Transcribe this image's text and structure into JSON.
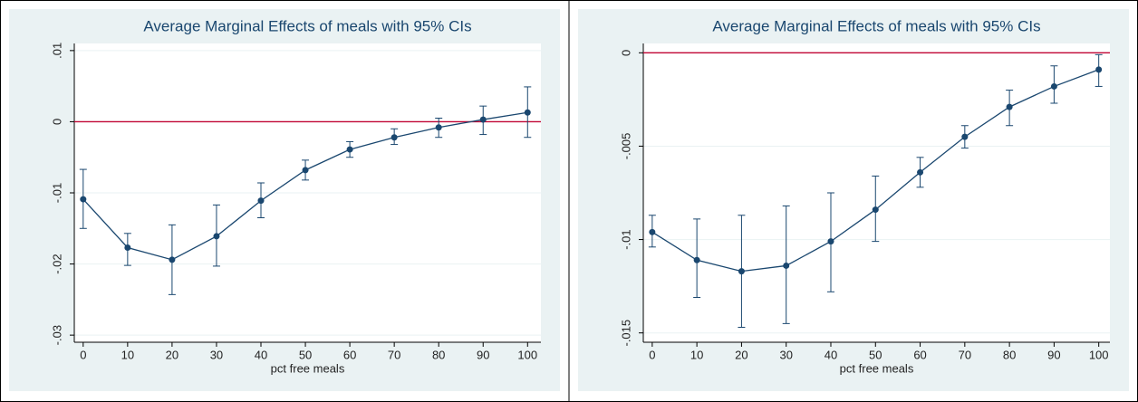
{
  "chart_data": [
    {
      "type": "line",
      "title": "Average Marginal Effects of meals with 95% CIs",
      "x_label": "pct free meals",
      "x": [
        0,
        10,
        20,
        30,
        40,
        50,
        60,
        70,
        80,
        90,
        100
      ],
      "series": [
        {
          "color": "#1a476f",
          "values": [
            -0.0109,
            -0.0177,
            -0.0194,
            -0.0161,
            -0.0111,
            -0.0068,
            -0.0039,
            -0.0022,
            -0.0008,
            0.0003,
            0.0013
          ],
          "ci_upper": [
            -0.0067,
            -0.0157,
            -0.0145,
            -0.0117,
            -0.0086,
            -0.0054,
            -0.0028,
            -0.001,
            0.0005,
            0.0022,
            0.0049
          ],
          "ci_lower": [
            -0.015,
            -0.0202,
            -0.0243,
            -0.0203,
            -0.0135,
            -0.0082,
            -0.005,
            -0.0032,
            -0.0022,
            -0.0018,
            -0.0022
          ]
        }
      ],
      "reference_line": {
        "value": 0,
        "color": "#c10534"
      },
      "xlim": [
        -2,
        103
      ],
      "xticks": [
        0,
        10,
        20,
        30,
        40,
        50,
        60,
        70,
        80,
        90,
        100
      ],
      "ylim": [
        -0.031,
        0.011
      ],
      "yticks": [
        {
          "value": -0.03,
          "label": "-.03"
        },
        {
          "value": -0.02,
          "label": "-.02"
        },
        {
          "value": -0.01,
          "label": "-.01"
        },
        0,
        {
          "value": 0.01,
          "label": ".01"
        }
      ],
      "grid": true
    },
    {
      "type": "line",
      "title": "Average Marginal Effects of meals with 95% CIs",
      "x_label": "pct free meals",
      "x": [
        0,
        10,
        20,
        30,
        40,
        50,
        60,
        70,
        80,
        90,
        100
      ],
      "series": [
        {
          "color": "#1a476f",
          "values": [
            -0.0096,
            -0.0111,
            -0.0117,
            -0.0114,
            -0.0101,
            -0.0084,
            -0.0064,
            -0.0045,
            -0.0029,
            -0.0018,
            -0.0009
          ],
          "ci_upper": [
            -0.0087,
            -0.0089,
            -0.0087,
            -0.0082,
            -0.0075,
            -0.0066,
            -0.0056,
            -0.0039,
            -0.002,
            -0.0007,
            -0.0001
          ],
          "ci_lower": [
            -0.0104,
            -0.0131,
            -0.0147,
            -0.0145,
            -0.0128,
            -0.0101,
            -0.0072,
            -0.0051,
            -0.0039,
            -0.0027,
            -0.0018
          ]
        }
      ],
      "reference_line": {
        "value": 0,
        "color": "#c10534"
      },
      "xlim": [
        -2,
        102.5
      ],
      "xticks": [
        0,
        10,
        20,
        30,
        40,
        50,
        60,
        70,
        80,
        90,
        100
      ],
      "ylim": [
        -0.0155,
        0.0005
      ],
      "yticks": [
        {
          "value": -0.015,
          "label": "-.015"
        },
        {
          "value": -0.01,
          "label": "-.01"
        },
        {
          "value": -0.005,
          "label": "-.005"
        },
        0
      ],
      "grid": true
    }
  ]
}
